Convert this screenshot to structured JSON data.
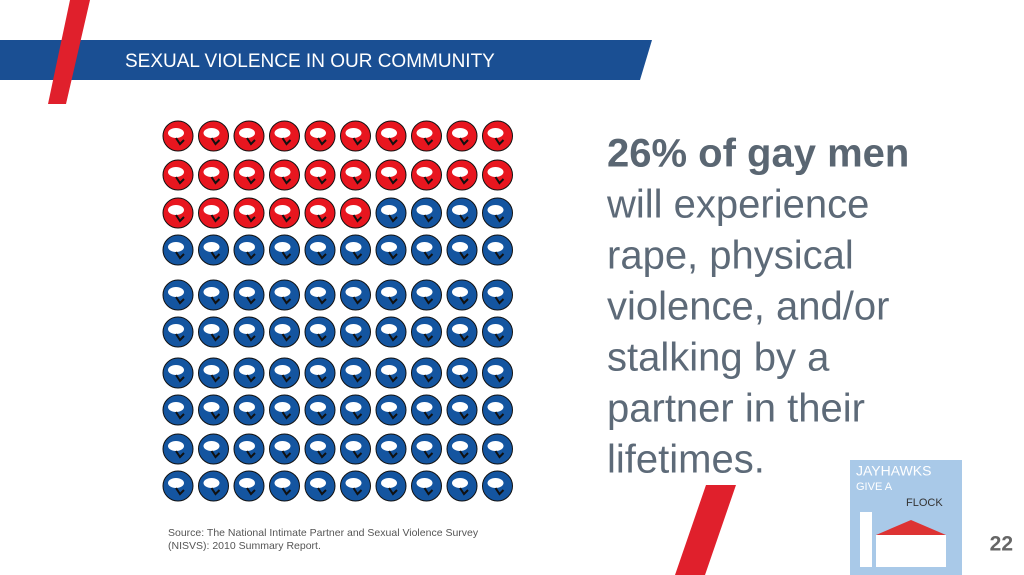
{
  "header": {
    "title": "SEXUAL VIOLENCE IN OUR COMMUNITY"
  },
  "icon_grid": {
    "total": 100,
    "highlighted": 26,
    "columns": 10,
    "highlight_color": "#e8161f",
    "base_color": "#1455a0"
  },
  "statement": {
    "lines": [
      "26% of gay men",
      "will experience",
      "rape, physical",
      "violence, and/or",
      "stalking by a",
      "partner in their",
      "lifetimes."
    ]
  },
  "source": {
    "lines": [
      "Source: The National Intimate Partner and Sexual Violence Survey",
      "(NISVS): 2010 Summary Report."
    ]
  },
  "logo": {
    "lines": [
      "JAYHAWKS",
      "GIVE A",
      "FLOCK"
    ]
  },
  "page_number": "22"
}
